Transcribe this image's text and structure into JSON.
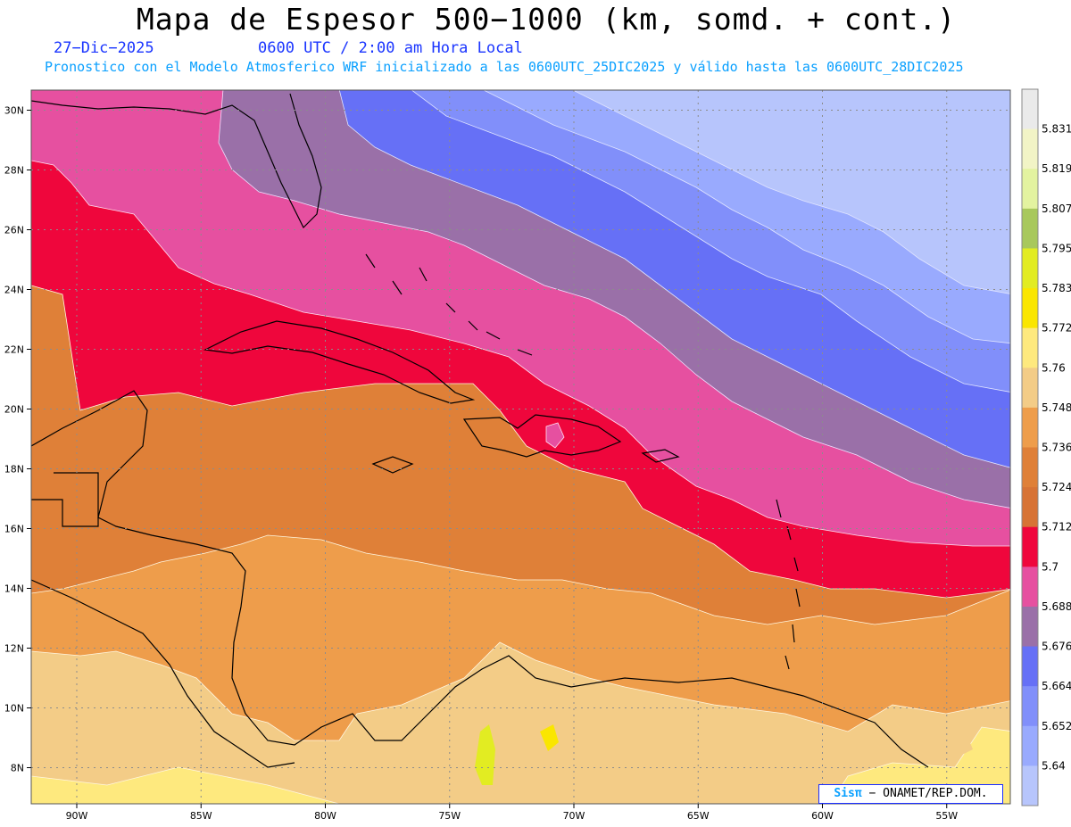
{
  "header": {
    "title": "Mapa de Espesor 500−1000 (km, somd. + cont.)",
    "date": "27−Dic−2025",
    "time": "0600 UTC / 2:00 am Hora Local",
    "subtitle": "Pronostico con el Modelo Atmosferico WRF inicializado a las 0600UTC_25DIC2025 y válido hasta las  0600UTC_28DIC2025"
  },
  "map": {
    "lat_labels": [
      "30N",
      "28N",
      "26N",
      "24N",
      "22N",
      "20N",
      "18N",
      "16N",
      "14N",
      "12N",
      "10N",
      "8N"
    ],
    "lat_values": [
      30,
      28,
      26,
      24,
      22,
      20,
      18,
      16,
      14,
      12,
      10,
      8
    ],
    "lon_labels": [
      "90W",
      "85W",
      "80W",
      "75W",
      "70W",
      "65W",
      "60W",
      "55W"
    ],
    "lon_values": [
      -90,
      -85,
      -80,
      -75,
      -70,
      -65,
      -60,
      -55
    ],
    "grid": "dotted"
  },
  "colorbar": {
    "labels": [
      "5.831",
      "5.819",
      "5.807",
      "5.795",
      "5.783",
      "5.772",
      "5.76",
      "5.748",
      "5.736",
      "5.724",
      "5.712",
      "5.7",
      "5.688",
      "5.676",
      "5.664",
      "5.652",
      "5.64"
    ],
    "colors": [
      "#eaeaea",
      "#f2f4c6",
      "#e3f3a0",
      "#a8c85c",
      "#e2ec22",
      "#fae600",
      "#fee97e",
      "#f3cc87",
      "#ee9d4b",
      "#df8038",
      "#d77336",
      "#ef063c",
      "#e650a0",
      "#9a70a8",
      "#6670f6",
      "#818ffa",
      "#99aafe",
      "#b7c5fc"
    ]
  },
  "credit": {
    "brand": "Sisπ",
    "text": "− ONAMET/REP.DOM."
  }
}
